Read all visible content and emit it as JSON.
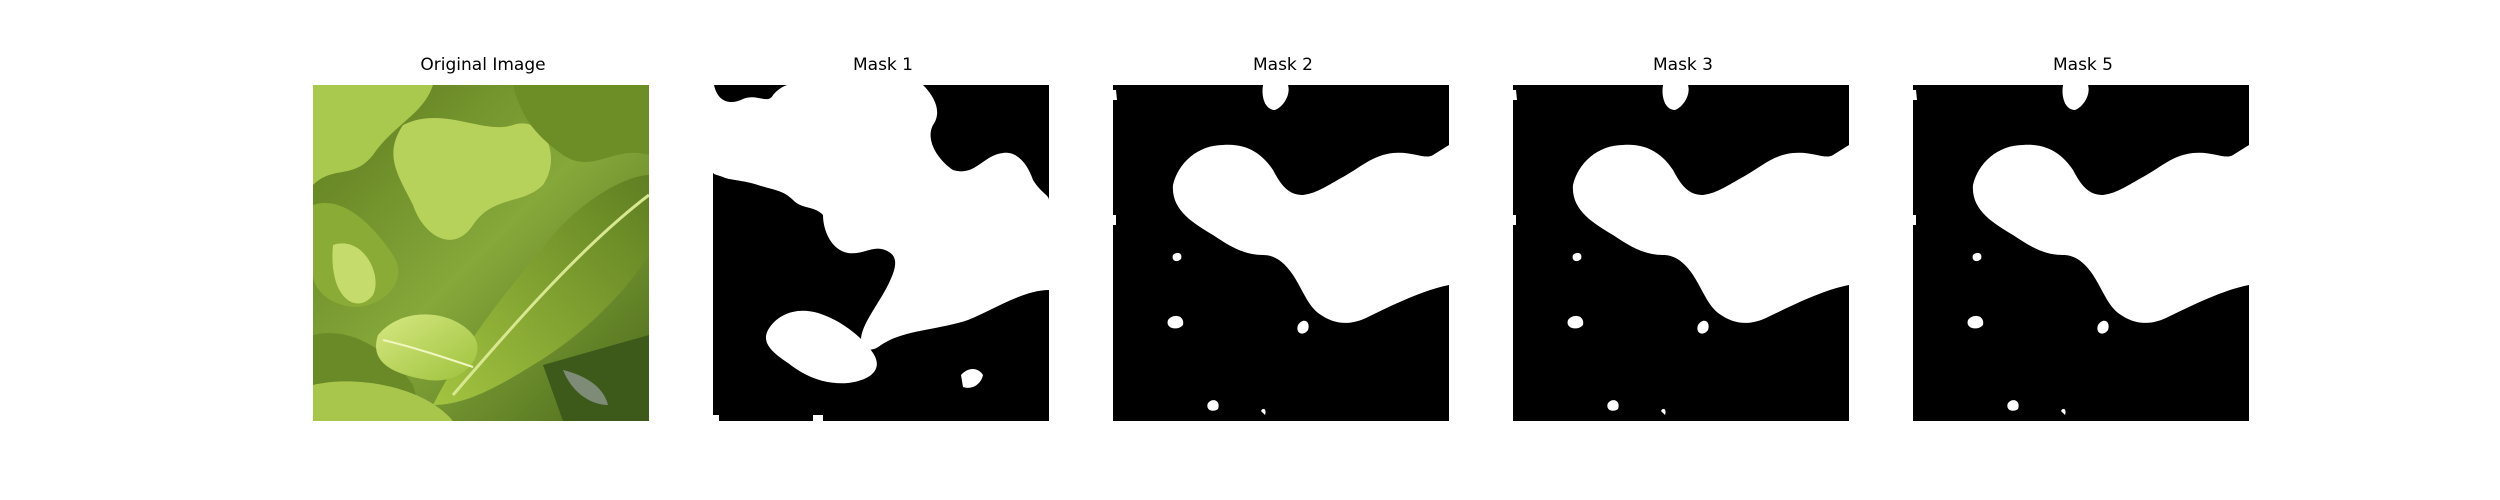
{
  "panels": [
    {
      "title": "Original Image",
      "kind": "photo",
      "description": "close-up of green leafy vegetables"
    },
    {
      "title": "Mask 1",
      "kind": "mask"
    },
    {
      "title": "Mask 2",
      "kind": "mask"
    },
    {
      "title": "Mask 3",
      "kind": "mask"
    },
    {
      "title": "Mask 5",
      "kind": "mask"
    }
  ],
  "colors": {
    "mask_foreground": "#ffffff",
    "mask_background": "#000000",
    "leaf_dark": "#3f5a18",
    "leaf_mid": "#7ea02c",
    "leaf_light": "#c8dc6a"
  }
}
